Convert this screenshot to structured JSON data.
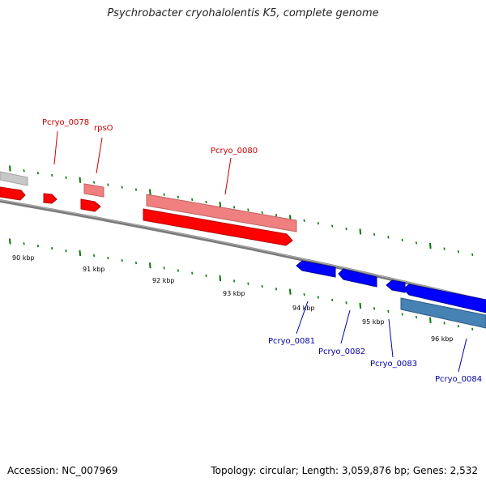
{
  "title": "Psychrobacter cryohalolentis K5, complete genome",
  "footer": {
    "accession": "Accession: NC_007969",
    "summary": "Topology: circular; Length: 3,059,876 bp; Genes: 2,532"
  },
  "ruler": {
    "tick_labels": [
      "90 kbp",
      "91 kbp",
      "92 kbp",
      "93 kbp",
      "94 kbp",
      "95 kbp",
      "96 kbp"
    ]
  },
  "colors": {
    "forward_cds": "#ff0000",
    "forward_gene": "#f08080",
    "reverse_cds": "#0000ff",
    "reverse_gene": "#4682b4",
    "other_gene": "#c8c8c8",
    "backbone": "#808080",
    "tick": "#007700",
    "forward_label": "#cc0000",
    "reverse_label": "#0000aa"
  },
  "genes": {
    "forward": [
      "Pcryo_0078",
      "rpsO",
      "Pcryo_0080"
    ],
    "reverse": [
      "Pcryo_0081",
      "Pcryo_0082",
      "Pcryo_0083",
      "Pcryo_0084"
    ]
  }
}
